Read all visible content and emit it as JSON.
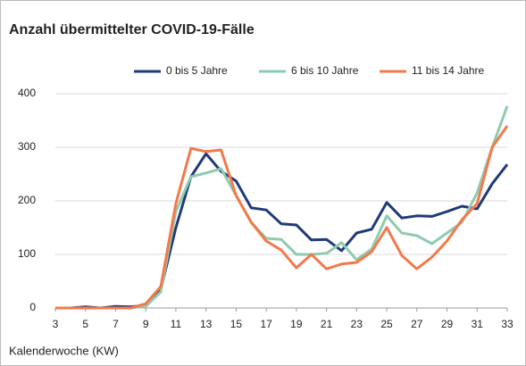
{
  "chart_data": {
    "type": "line",
    "title": "Anzahl übermittelter COVID-19-Fälle",
    "xlabel": "Kalenderwoche (KW)",
    "x": [
      3,
      4,
      5,
      6,
      7,
      8,
      9,
      10,
      11,
      12,
      13,
      14,
      15,
      16,
      17,
      18,
      19,
      20,
      21,
      22,
      23,
      24,
      25,
      26,
      27,
      28,
      29,
      30,
      31,
      32,
      33
    ],
    "series": [
      {
        "name": "0 bis 5 Jahre",
        "color": "#1f3a7a",
        "values": [
          0,
          0,
          2,
          0,
          3,
          2,
          5,
          35,
          150,
          245,
          288,
          255,
          237,
          187,
          183,
          157,
          155,
          127,
          128,
          107,
          140,
          147,
          197,
          168,
          172,
          171,
          180,
          190,
          185,
          232,
          268
        ]
      },
      {
        "name": "6 bis 10 Jahre",
        "color": "#8fcbb0",
        "values": [
          0,
          0,
          0,
          0,
          0,
          0,
          3,
          30,
          180,
          245,
          252,
          260,
          210,
          160,
          130,
          128,
          100,
          100,
          102,
          122,
          90,
          110,
          172,
          140,
          135,
          120,
          140,
          160,
          215,
          300,
          377
        ]
      },
      {
        "name": "11 bis 14 Jahre",
        "color": "#f4794a",
        "values": [
          0,
          0,
          0,
          0,
          0,
          0,
          8,
          40,
          195,
          298,
          292,
          295,
          210,
          160,
          125,
          108,
          75,
          100,
          73,
          82,
          85,
          105,
          150,
          98,
          73,
          95,
          125,
          165,
          195,
          300,
          340
        ]
      }
    ],
    "xlim": [
      3,
      33
    ],
    "xticks": [
      3,
      5,
      7,
      9,
      11,
      13,
      15,
      17,
      19,
      21,
      23,
      25,
      27,
      29,
      31,
      33
    ],
    "ylim": [
      0,
      400
    ],
    "yticks": [
      0,
      100,
      200,
      300,
      400
    ],
    "grid": true,
    "legend": "top"
  }
}
